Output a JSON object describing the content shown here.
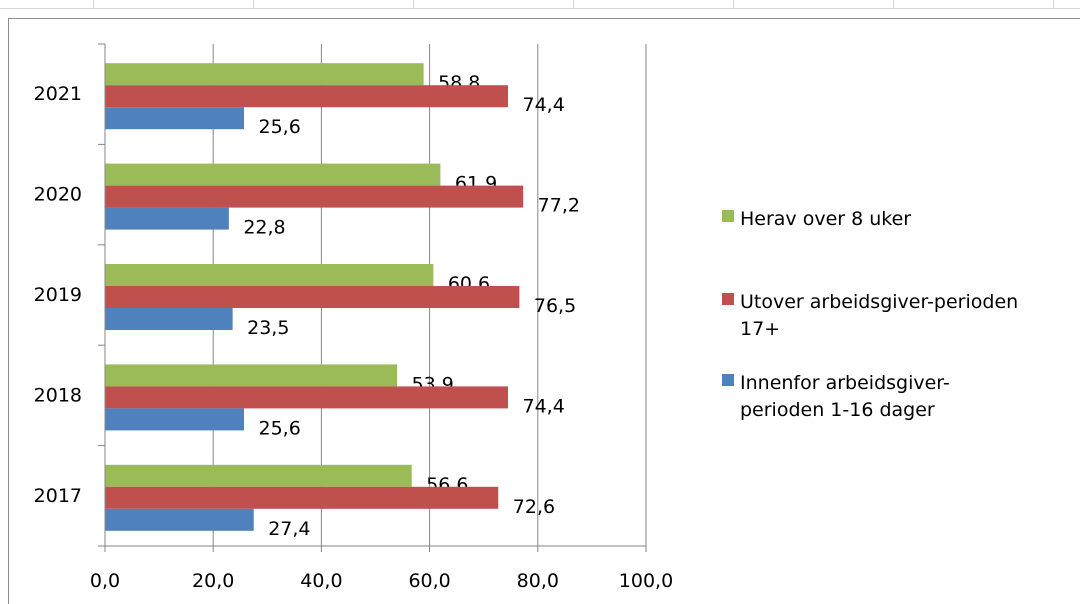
{
  "chart_data": {
    "type": "bar",
    "orientation": "horizontal",
    "categories": [
      "2021",
      "2020",
      "2019",
      "2018",
      "2017"
    ],
    "series": [
      {
        "name": "Herav over 8 uker",
        "color": "#9BBB59",
        "values": [
          58.8,
          61.9,
          60.6,
          53.9,
          56.6
        ],
        "labels": [
          "58,8",
          "61,9",
          "60,6",
          "53,9",
          "56,6"
        ]
      },
      {
        "name": "Utover arbeidsgiver-perioden 17+",
        "color": "#C0504D",
        "values": [
          74.4,
          77.2,
          76.5,
          74.4,
          72.6
        ],
        "labels": [
          "74,4",
          "77,2",
          "76,5",
          "74,4",
          "72,6"
        ]
      },
      {
        "name": "Innenfor arbeidsgiver-perioden 1-16 dager",
        "color": "#4F81BD",
        "values": [
          25.6,
          22.8,
          23.5,
          25.6,
          27.4
        ],
        "labels": [
          "25,6",
          "22,8",
          "23,5",
          "25,6",
          "27,4"
        ]
      }
    ],
    "xlim": [
      0,
      100
    ],
    "xticks": [
      0,
      20,
      40,
      60,
      80,
      100
    ],
    "xtick_labels": [
      "0,0",
      "20,0",
      "40,0",
      "60,0",
      "80,0",
      "100,0"
    ],
    "grid": "vertical major gridlines",
    "legend": {
      "placement": "right",
      "entries": [
        {
          "lines": [
            "Herav over 8 uker"
          ],
          "color": "#9BBB59"
        },
        {
          "lines": [
            "Utover arbeidsgiver-perioden",
            "17+"
          ],
          "color": "#C0504D"
        },
        {
          "lines": [
            "Innenfor arbeidsgiver-",
            "perioden 1-16 dager"
          ],
          "color": "#4F81BD"
        }
      ]
    }
  }
}
